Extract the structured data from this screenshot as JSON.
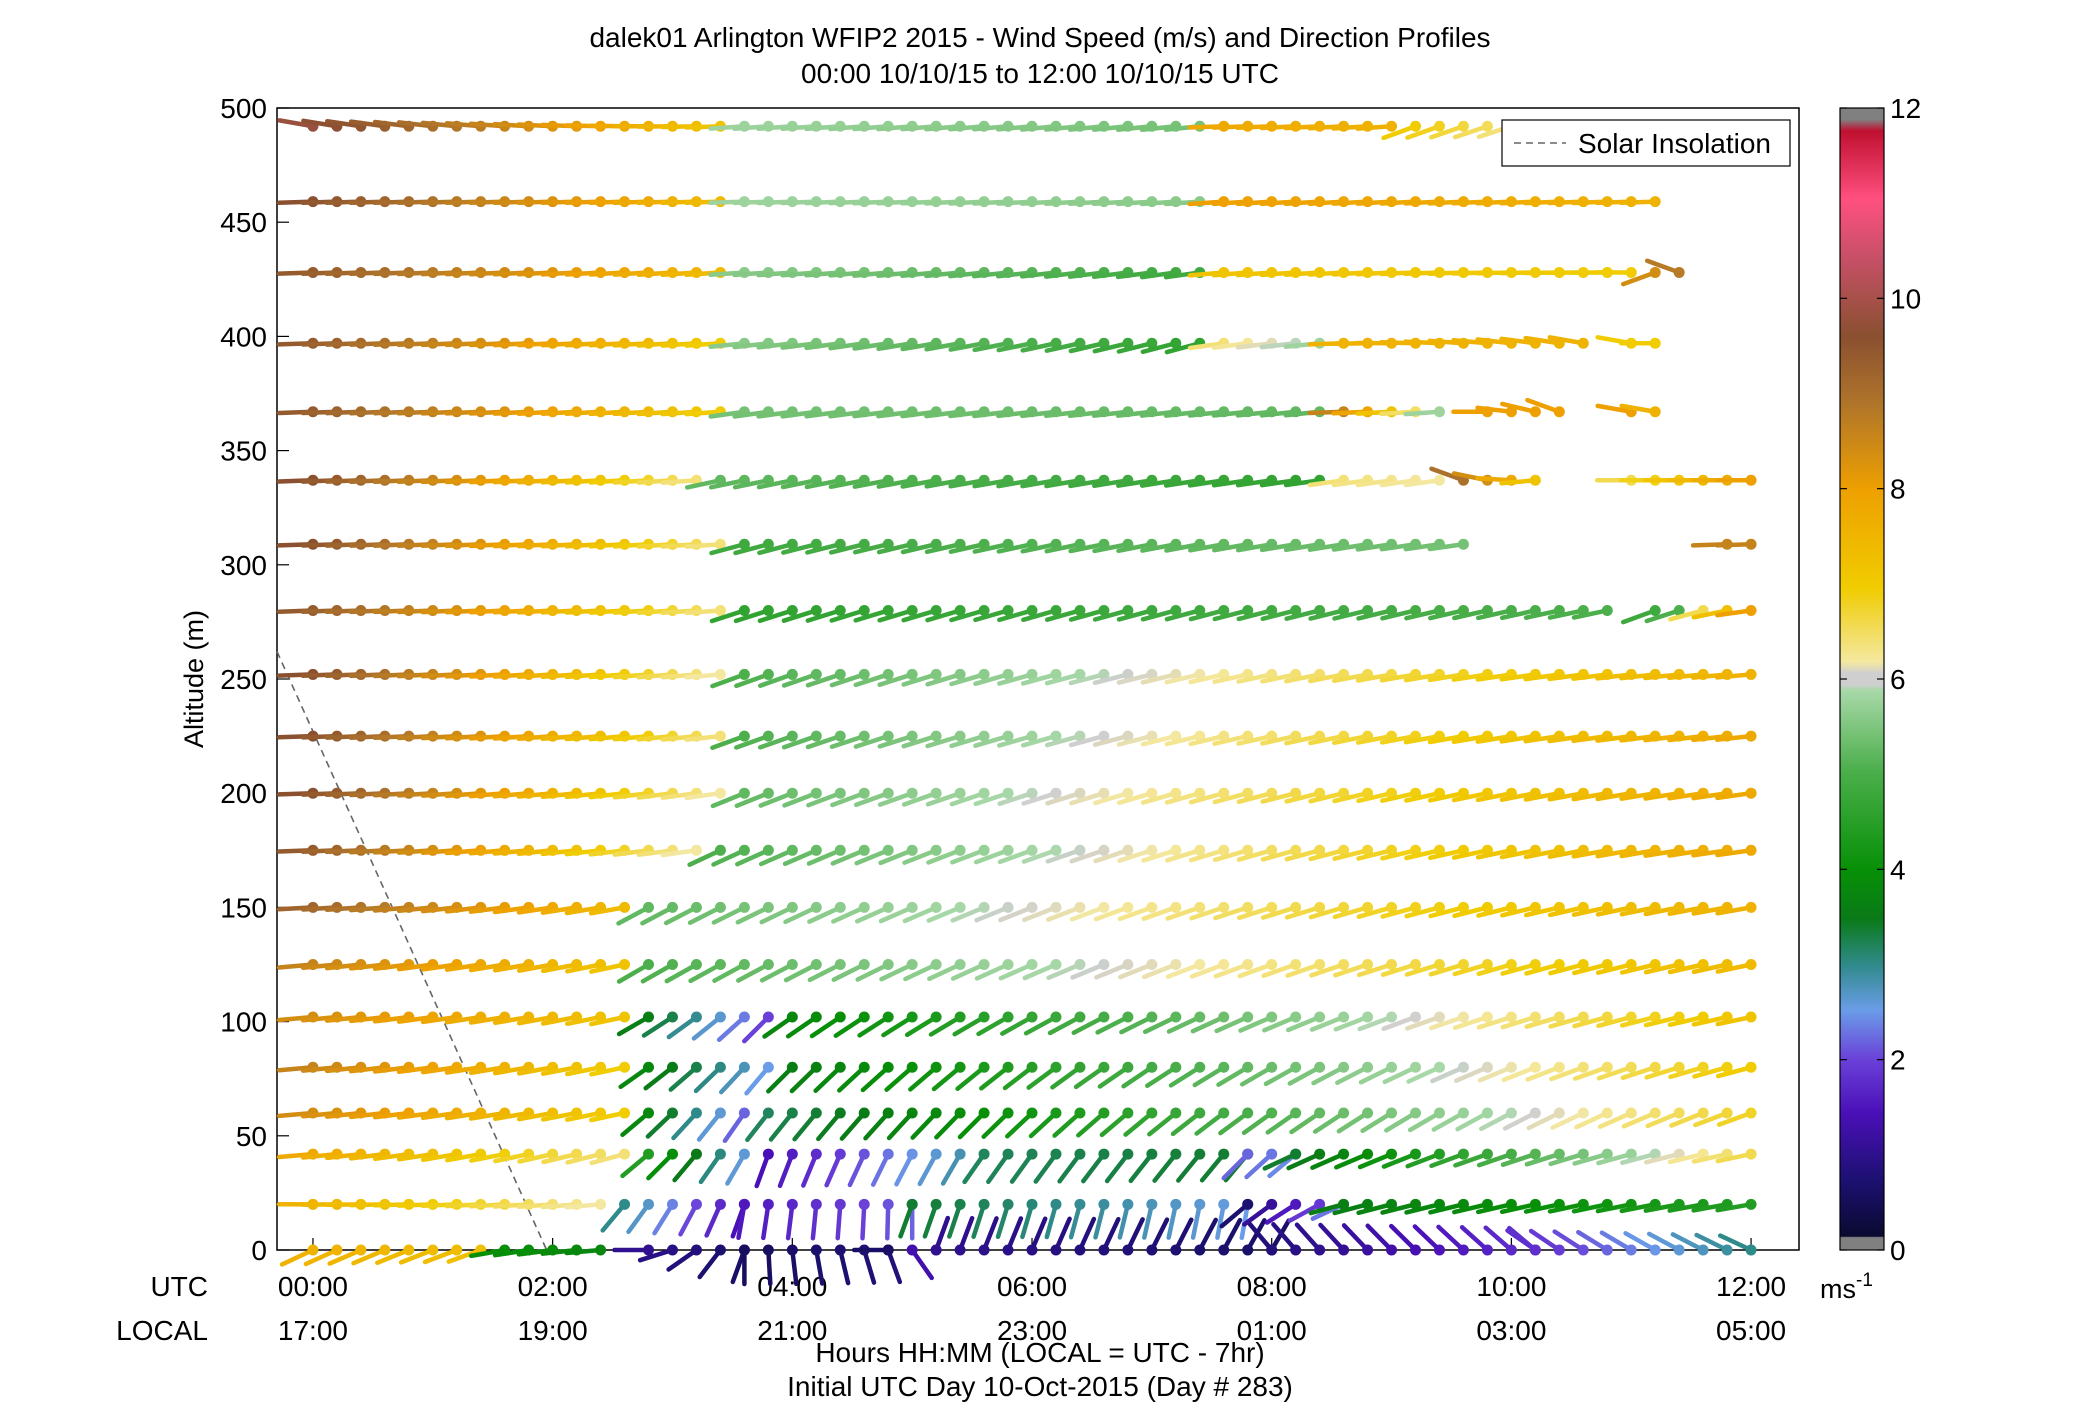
{
  "chart_data": {
    "type": "scatter",
    "subtype": "wind-barb-profile",
    "title": "dalek01 Arlington WFIP2 2015 - Wind Speed (m/s) and Direction Profiles",
    "subtitle": "00:00 10/10/15 to 12:00 10/10/15  UTC",
    "ylabel": "Altitude (m)",
    "xlabel": "Hours HH:MM  (LOCAL = UTC - 7hr)",
    "xlabel2": "Initial UTC Day 10-Oct-2015 (Day # 283)",
    "row_label_utc": "UTC",
    "row_label_local": "LOCAL",
    "ylim": [
      0,
      500
    ],
    "xlim_hours": [
      -0.3,
      12.4
    ],
    "yticks": [
      "0",
      "50",
      "100",
      "150",
      "200",
      "250",
      "300",
      "350",
      "400",
      "450",
      "500"
    ],
    "xticks_utc": [
      "00:00",
      "02:00",
      "04:00",
      "06:00",
      "08:00",
      "10:00",
      "12:00"
    ],
    "xticks_local": [
      "17:00",
      "19:00",
      "21:00",
      "23:00",
      "01:00",
      "03:00",
      "05:00"
    ],
    "legend": {
      "entries": [
        "Solar Insolation"
      ],
      "placement": "top-right"
    },
    "colorbar": {
      "label": "ms",
      "label_exponent": "-1",
      "range": [
        0,
        12
      ],
      "ticks": [
        "0",
        "2",
        "4",
        "6",
        "8",
        "10",
        "12"
      ]
    },
    "solar_insolation": {
      "x_hours": [
        -0.3,
        1.95
      ],
      "y_m": [
        262,
        0
      ]
    },
    "time_step_hours": 0.2,
    "time_start_hours": 0,
    "altitudes_m": [
      0,
      20,
      42,
      60,
      80,
      102,
      125,
      150,
      175,
      200,
      225,
      252,
      280,
      309,
      337,
      367,
      397,
      428,
      459,
      492
    ],
    "profiles": [
      {
        "alt": 0,
        "segments": [
          {
            "t0": 0.0,
            "t1": 1.4,
            "speed": [
              7.6,
              7.3
            ],
            "dir": [
              245,
              250
            ]
          },
          {
            "t0": 1.6,
            "t1": 2.4,
            "speed": [
              4.0,
              3.8
            ],
            "dir": [
              260,
              265
            ]
          },
          {
            "t0": 2.8,
            "t1": 3.6,
            "speed": [
              1.0,
              0.6
            ],
            "dir": [
              270,
              200
            ]
          },
          {
            "t0": 3.6,
            "t1": 4.8,
            "speed": [
              0.5,
              0.8
            ],
            "dir": [
              180,
              160
            ]
          },
          {
            "t0": 4.8,
            "t1": 5.2,
            "speed": [
              0.6,
              2.0
            ],
            "dir": [
              270,
              20
            ]
          },
          {
            "t0": 5.2,
            "t1": 8.0,
            "speed": [
              1.0,
              0.6
            ],
            "dir": [
              20,
              30
            ]
          },
          {
            "t0": 8.0,
            "t1": 10.2,
            "speed": [
              0.8,
              1.8
            ],
            "dir": [
              320,
              310
            ]
          },
          {
            "t0": 10.2,
            "t1": 12.0,
            "speed": [
              1.8,
              3.0
            ],
            "dir": [
              305,
              295
            ]
          }
        ]
      },
      {
        "alt": 20,
        "segments": [
          {
            "t0": 0.0,
            "t1": 2.4,
            "speed": [
              7.6,
              6.2
            ],
            "dir": [
              270,
              265
            ]
          },
          {
            "t0": 2.6,
            "t1": 3.6,
            "speed": [
              3.0,
              1.4
            ],
            "dir": [
              220,
              200
            ]
          },
          {
            "t0": 3.6,
            "t1": 5.0,
            "speed": [
              1.5,
              2.2
            ],
            "dir": [
              190,
              180
            ]
          },
          {
            "t0": 5.0,
            "t1": 7.8,
            "speed": [
              3.4,
              2.5
            ],
            "dir": [
              200,
              190
            ]
          },
          {
            "t0": 7.8,
            "t1": 8.6,
            "speed": [
              0.7,
              2.3
            ],
            "dir": [
              230,
              245
            ]
          },
          {
            "t0": 8.6,
            "t1": 12.0,
            "speed": [
              3.6,
              4.4
            ],
            "dir": [
              255,
              260
            ]
          }
        ]
      },
      {
        "alt": 42,
        "segments": [
          {
            "t0": 0.0,
            "t1": 2.6,
            "speed": [
              7.8,
              6.4
            ],
            "dir": [
              265,
              255
            ]
          },
          {
            "t0": 2.8,
            "t1": 3.6,
            "speed": [
              4.4,
              2.6
            ],
            "dir": [
              230,
              210
            ]
          },
          {
            "t0": 3.8,
            "t1": 5.4,
            "speed": [
              1.4,
              2.8
            ],
            "dir": [
              200,
              210
            ]
          },
          {
            "t0": 5.6,
            "t1": 7.8,
            "speed": [
              3.2,
              3.4
            ],
            "dir": [
              215,
              220
            ]
          },
          {
            "t0": 7.8,
            "t1": 8.2,
            "speed": [
              2.2,
              2.4
            ],
            "dir": [
              225,
              230
            ]
          },
          {
            "t0": 8.2,
            "t1": 12.0,
            "speed": [
              3.4,
              6.6
            ],
            "dir": [
              245,
              258
            ]
          }
        ]
      },
      {
        "alt": 60,
        "segments": [
          {
            "t0": 0.0,
            "t1": 2.6,
            "speed": [
              8.4,
              7.0
            ],
            "dir": [
              265,
              258
            ]
          },
          {
            "t0": 2.8,
            "t1": 3.6,
            "speed": [
              3.8,
              2.2
            ],
            "dir": [
              230,
              215
            ]
          },
          {
            "t0": 3.8,
            "t1": 12.0,
            "speed": [
              3.2,
              6.8
            ],
            "dir": [
              218,
              250
            ]
          }
        ]
      },
      {
        "alt": 80,
        "segments": [
          {
            "t0": 0.0,
            "t1": 2.6,
            "speed": [
              8.6,
              7.0
            ],
            "dir": [
              265,
              258
            ]
          },
          {
            "t0": 2.8,
            "t1": 3.8,
            "speed": [
              3.8,
              2.5
            ],
            "dir": [
              235,
              220
            ]
          },
          {
            "t0": 4.0,
            "t1": 12.0,
            "speed": [
              3.6,
              7.0
            ],
            "dir": [
              225,
              255
            ]
          }
        ]
      },
      {
        "alt": 102,
        "segments": [
          {
            "t0": 0.0,
            "t1": 2.6,
            "speed": [
              8.4,
              7.2
            ],
            "dir": [
              265,
              258
            ]
          },
          {
            "t0": 2.8,
            "t1": 3.8,
            "speed": [
              3.6,
              2.0
            ],
            "dir": [
              240,
              225
            ]
          },
          {
            "t0": 4.0,
            "t1": 12.0,
            "speed": [
              3.8,
              7.2
            ],
            "dir": [
              235,
              258
            ]
          }
        ]
      },
      {
        "alt": 125,
        "segments": [
          {
            "t0": 0.0,
            "t1": 2.6,
            "speed": [
              8.6,
              7.2
            ],
            "dir": [
              265,
              258
            ]
          },
          {
            "t0": 2.8,
            "t1": 12.0,
            "speed": [
              5.0,
              7.4
            ],
            "dir": [
              240,
              258
            ]
          }
        ]
      },
      {
        "alt": 150,
        "segments": [
          {
            "t0": 0.0,
            "t1": 2.6,
            "speed": [
              9.2,
              7.4
            ],
            "dir": [
              267,
              260
            ]
          },
          {
            "t0": 2.8,
            "t1": 12.0,
            "speed": [
              5.2,
              7.6
            ],
            "dir": [
              242,
              260
            ]
          }
        ]
      },
      {
        "alt": 175,
        "segments": [
          {
            "t0": 0.0,
            "t1": 3.2,
            "speed": [
              9.4,
              6.2
            ],
            "dir": [
              268,
              262
            ]
          },
          {
            "t0": 3.4,
            "t1": 12.0,
            "speed": [
              5.0,
              7.8
            ],
            "dir": [
              245,
              262
            ]
          }
        ]
      },
      {
        "alt": 200,
        "segments": [
          {
            "t0": 0.0,
            "t1": 3.4,
            "speed": [
              9.6,
              6.2
            ],
            "dir": [
              268,
              262
            ]
          },
          {
            "t0": 3.6,
            "t1": 12.0,
            "speed": [
              5.2,
              7.8
            ],
            "dir": [
              248,
              262
            ]
          }
        ]
      },
      {
        "alt": 225,
        "segments": [
          {
            "t0": 0.0,
            "t1": 3.4,
            "speed": [
              9.6,
              6.4
            ],
            "dir": [
              268,
              264
            ]
          },
          {
            "t0": 3.6,
            "t1": 12.0,
            "speed": [
              5.0,
              7.8
            ],
            "dir": [
              250,
              264
            ]
          }
        ]
      },
      {
        "alt": 252,
        "segments": [
          {
            "t0": 0.0,
            "t1": 3.4,
            "speed": [
              9.6,
              6.2
            ],
            "dir": [
              268,
              265
            ]
          },
          {
            "t0": 3.6,
            "t1": 12.0,
            "speed": [
              5.0,
              7.6
            ],
            "dir": [
              250,
              265
            ]
          }
        ]
      },
      {
        "alt": 280,
        "segments": [
          {
            "t0": 0.0,
            "t1": 3.4,
            "speed": [
              9.4,
              6.4
            ],
            "dir": [
              268,
              266
            ]
          },
          {
            "t0": 3.6,
            "t1": 10.8,
            "speed": [
              4.6,
              5.0
            ],
            "dir": [
              252,
              258
            ]
          },
          {
            "t0": 11.2,
            "t1": 11.4,
            "speed": [
              4.8,
              5.0
            ],
            "dir": [
              250,
              252
            ]
          },
          {
            "t0": 11.6,
            "t1": 12.0,
            "speed": [
              6.6,
              8.0
            ],
            "dir": [
              255,
              262
            ]
          }
        ]
      },
      {
        "alt": 309,
        "segments": [
          {
            "t0": 0.0,
            "t1": 3.4,
            "speed": [
              9.6,
              6.4
            ],
            "dir": [
              268,
              266
            ]
          },
          {
            "t0": 3.6,
            "t1": 9.6,
            "speed": [
              4.8,
              5.4
            ],
            "dir": [
              255,
              262
            ]
          },
          {
            "t0": 11.8,
            "t1": 12.0,
            "speed": [
              8.6,
              8.6
            ],
            "dir": [
              268,
              268
            ]
          }
        ]
      },
      {
        "alt": 337,
        "segments": [
          {
            "t0": 0.0,
            "t1": 3.2,
            "speed": [
              9.6,
              6.4
            ],
            "dir": [
              268,
              266
            ]
          },
          {
            "t0": 3.4,
            "t1": 8.4,
            "speed": [
              5.2,
              4.6
            ],
            "dir": [
              258,
              262
            ]
          },
          {
            "t0": 8.6,
            "t1": 9.4,
            "speed": [
              6.4,
              6.2
            ],
            "dir": [
              262,
              262
            ]
          },
          {
            "t0": 9.6,
            "t1": 10.2,
            "speed": [
              9.0,
              7.2
            ],
            "dir": [
              290,
              265
            ]
          },
          {
            "t0": 11.0,
            "t1": 12.0,
            "speed": [
              6.6,
              8.0
            ],
            "dir": [
              270,
              270
            ]
          }
        ]
      },
      {
        "alt": 367,
        "segments": [
          {
            "t0": 0.0,
            "t1": 3.4,
            "speed": [
              9.4,
              7.0
            ],
            "dir": [
              268,
              266
            ]
          },
          {
            "t0": 3.6,
            "t1": 8.4,
            "speed": [
              5.4,
              5.2
            ],
            "dir": [
              262,
              264
            ]
          },
          {
            "t0": 8.6,
            "t1": 9.4,
            "speed": [
              8.6,
              5.8
            ],
            "dir": [
              268,
              266
            ]
          },
          {
            "t0": 9.8,
            "t1": 10.4,
            "speed": [
              8.0,
              8.0
            ],
            "dir": [
              270,
              290
            ]
          },
          {
            "t0": 11.0,
            "t1": 11.2,
            "speed": [
              8.0,
              7.6
            ],
            "dir": [
              280,
              280
            ]
          }
        ]
      },
      {
        "alt": 397,
        "segments": [
          {
            "t0": 0.0,
            "t1": 3.4,
            "speed": [
              9.4,
              7.0
            ],
            "dir": [
              268,
              266
            ]
          },
          {
            "t0": 3.6,
            "t1": 7.4,
            "speed": [
              5.6,
              4.6
            ],
            "dir": [
              264,
              255
            ]
          },
          {
            "t0": 7.6,
            "t1": 8.4,
            "speed": [
              6.4,
              5.8
            ],
            "dir": [
              262,
              264
            ]
          },
          {
            "t0": 8.6,
            "t1": 10.6,
            "speed": [
              7.6,
              7.6
            ],
            "dir": [
              268,
              280
            ]
          },
          {
            "t0": 11.0,
            "t1": 11.2,
            "speed": [
              7.0,
              7.0
            ],
            "dir": [
              280,
              270
            ]
          }
        ]
      },
      {
        "alt": 428,
        "segments": [
          {
            "t0": 0.0,
            "t1": 3.4,
            "speed": [
              9.4,
              7.4
            ],
            "dir": [
              268,
              266
            ]
          },
          {
            "t0": 3.6,
            "t1": 7.4,
            "speed": [
              5.6,
              4.8
            ],
            "dir": [
              266,
              262
            ]
          },
          {
            "t0": 7.6,
            "t1": 11.0,
            "speed": [
              7.2,
              7.0
            ],
            "dir": [
              265,
              270
            ]
          },
          {
            "t0": 11.2,
            "t1": 11.4,
            "speed": [
              8.4,
              8.8
            ],
            "dir": [
              250,
              290
            ]
          }
        ]
      },
      {
        "alt": 459,
        "segments": [
          {
            "t0": 0.0,
            "t1": 3.4,
            "speed": [
              9.6,
              7.4
            ],
            "dir": [
              268,
              268
            ]
          },
          {
            "t0": 3.6,
            "t1": 7.4,
            "speed": [
              5.8,
              5.6
            ],
            "dir": [
              268,
              266
            ]
          },
          {
            "t0": 7.6,
            "t1": 11.2,
            "speed": [
              8.0,
              7.6
            ],
            "dir": [
              266,
              268
            ]
          }
        ]
      },
      {
        "alt": 492,
        "segments": [
          {
            "t0": 0.0,
            "t1": 3.4,
            "speed": [
              9.8,
              7.2
            ],
            "dir": [
              280,
              268
            ]
          },
          {
            "t0": 3.6,
            "t1": 7.4,
            "speed": [
              5.8,
              5.4
            ],
            "dir": [
              266,
              264
            ]
          },
          {
            "t0": 7.6,
            "t1": 9.0,
            "speed": [
              7.8,
              7.6
            ],
            "dir": [
              268,
              266
            ]
          },
          {
            "t0": 9.2,
            "t1": 10.0,
            "speed": [
              7.0,
              6.4
            ],
            "dir": [
              250,
              252
            ]
          }
        ]
      }
    ]
  }
}
